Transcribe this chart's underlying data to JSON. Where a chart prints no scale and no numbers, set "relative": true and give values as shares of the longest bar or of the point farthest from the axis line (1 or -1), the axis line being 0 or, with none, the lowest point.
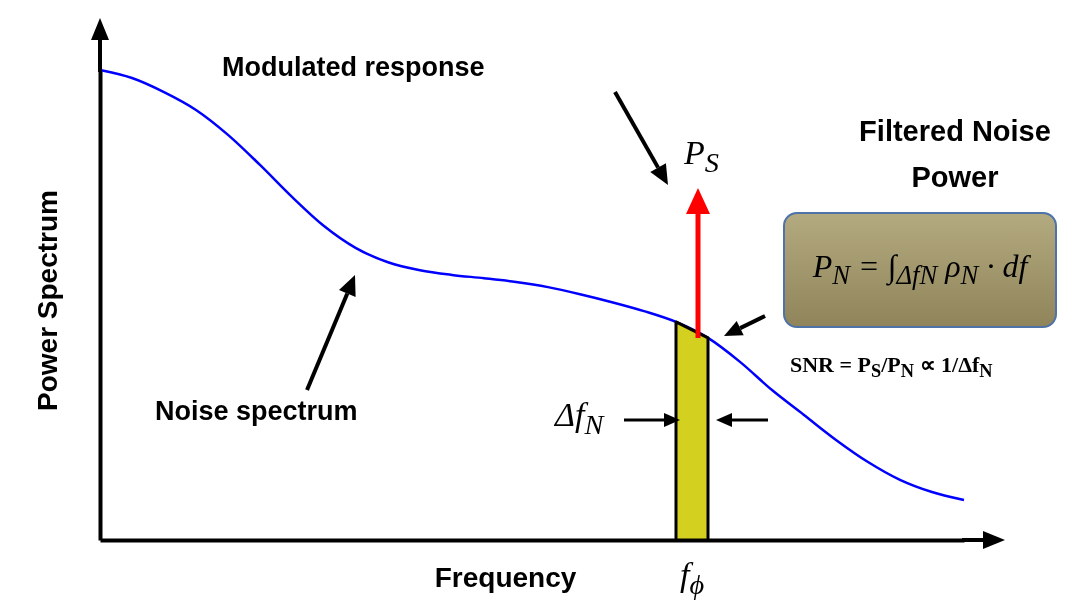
{
  "chart_data": {
    "type": "line",
    "relative": true,
    "xlabel": "Frequency",
    "ylabel": "Power Spectrum",
    "categories": [
      null,
      null,
      null,
      null,
      null,
      null,
      null,
      null,
      null,
      null,
      null,
      null,
      null,
      null,
      null,
      null,
      null,
      null,
      null,
      null,
      null,
      null,
      null,
      null,
      null,
      null,
      null,
      null
    ],
    "series": [
      {
        "color": "#0000ff",
        "values": [
          1,
          0.983,
          0.953,
          0.915,
          0.862,
          0.798,
          0.73,
          0.668,
          0.621,
          0.591,
          0.574,
          0.564,
          0.557,
          0.549,
          0.538,
          0.523,
          0.506,
          0.487,
          0.464,
          0.43,
          0.379,
          0.319,
          0.266,
          0.213,
          0.166,
          0.128,
          0.102,
          0.085
        ]
      },
      {
        "type": "area",
        "color": "#d4d020",
        "values": [
          null,
          null,
          null,
          null,
          null,
          null,
          null,
          null,
          null,
          null,
          null,
          null,
          null,
          null,
          null,
          null,
          null,
          null,
          0.464,
          0.43,
          null,
          null,
          null,
          null,
          null,
          null,
          null,
          null
        ]
      }
    ],
    "annotations": [
      "Modulated response",
      "Noise spectrum",
      "Filtered Noise Power",
      "P$_{S}$",
      "Δf$_{N}$",
      "P$_{N}$ = ∫$_{ΔfN}$ ρ$_{N}$ · df",
      "SNR = P$_{S}$/P$_{N}$ ∝ 1/Δf$_{N}$",
      "f$_{ϕ}$"
    ]
  }
}
